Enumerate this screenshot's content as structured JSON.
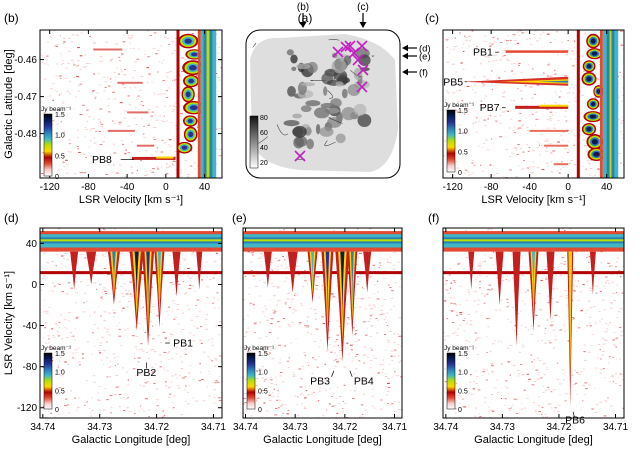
{
  "figure": {
    "colorbar_unit": "Jy beam⁻¹",
    "colorbar_ticks": [
      "1.5",
      "1.0",
      "0.5",
      "0"
    ],
    "colormap": [
      "#ffffff",
      "#f7cccc",
      "#e34a33",
      "#b30000",
      "#ffd700",
      "#b8e000",
      "#41b6c4",
      "#2c7fb8",
      "#253494",
      "#081d58",
      "#000000"
    ]
  },
  "chart_data": [
    {
      "id": "b",
      "label": "(b)",
      "type": "heatmap",
      "xlabel": "LSR Velocity [km s⁻¹]",
      "ylabel": "Galactic Latitude [deg]",
      "xlim": [
        -130,
        58
      ],
      "ylim": [
        -0.492,
        -0.452
      ],
      "xticks": [
        -120,
        -80,
        -40,
        0,
        40
      ],
      "xtick_labels": [
        "-120",
        "-80",
        "-40",
        "0",
        "40"
      ],
      "yticks": [
        -0.46,
        -0.47,
        -0.48
      ],
      "ytick_labels": [
        "-0.46",
        "-0.47",
        "-0.48"
      ],
      "annotations": [
        {
          "text": "PB8",
          "x": -33,
          "y": -0.487
        }
      ]
    },
    {
      "id": "a",
      "label": "(a)",
      "type": "image",
      "colorbar_ticks": [
        "80",
        "60",
        "40",
        "20"
      ],
      "arrows_top": [
        "(b)",
        "(c)"
      ],
      "arrows_right": [
        "(d)",
        "(e)",
        "(f)"
      ]
    },
    {
      "id": "c",
      "label": "(c)",
      "type": "heatmap",
      "xlabel": "LSR Velocity [km s⁻¹]",
      "ylabel": "",
      "xlim": [
        -130,
        58
      ],
      "ylim": [
        -0.492,
        -0.452
      ],
      "xticks": [
        -120,
        -80,
        -40,
        0,
        40
      ],
      "xtick_labels": [
        "-120",
        "-80",
        "-40",
        "0",
        "40"
      ],
      "annotations": [
        {
          "text": "PB1",
          "x": -72,
          "y": -0.458
        },
        {
          "text": "PB5",
          "x": -105,
          "y": -0.466
        },
        {
          "text": "PB7",
          "x": -65,
          "y": -0.473
        }
      ]
    },
    {
      "id": "d",
      "label": "(d)",
      "type": "heatmap",
      "xlabel": "Galactic Longitude [deg]",
      "ylabel": "LSR Velocity [km s⁻¹]",
      "xlim": [
        34.7405,
        34.7085
      ],
      "ylim": [
        -130,
        55
      ],
      "xticks": [
        34.74,
        34.73,
        34.72,
        34.71
      ],
      "xtick_labels": [
        "34.74",
        "34.73",
        "34.72",
        "34.71"
      ],
      "yticks": [
        40,
        0,
        -40,
        -80,
        -120
      ],
      "ytick_labels": [
        "40",
        "0",
        "-40",
        "-80",
        "-120"
      ],
      "annotations": [
        {
          "text": "PB1",
          "x": 34.7185,
          "y": -57
        },
        {
          "text": "PB2",
          "x": 34.7218,
          "y": -76
        }
      ]
    },
    {
      "id": "e",
      "label": "(e)",
      "type": "heatmap",
      "xlabel": "Galactic Longitude [deg]",
      "ylabel": "",
      "xlim": [
        34.7405,
        34.7085
      ],
      "ylim": [
        -130,
        55
      ],
      "xticks": [
        34.74,
        34.73,
        34.72,
        34.71
      ],
      "xtick_labels": [
        "34.74",
        "34.73",
        "34.72",
        "34.71"
      ],
      "annotations": [
        {
          "text": "PB3",
          "x": 34.7222,
          "y": -84
        },
        {
          "text": "PB4",
          "x": 34.719,
          "y": -84
        }
      ]
    },
    {
      "id": "f",
      "label": "(f)",
      "type": "heatmap",
      "xlabel": "Galactic Longitude [deg]",
      "ylabel": "",
      "xlim": [
        34.7405,
        34.7085
      ],
      "ylim": [
        -130,
        55
      ],
      "xticks": [
        34.74,
        34.73,
        34.72,
        34.71
      ],
      "xtick_labels": [
        "34.74",
        "34.73",
        "34.72",
        "34.71"
      ],
      "annotations": [
        {
          "text": "PB6",
          "x": 34.7175,
          "y": -124
        }
      ]
    }
  ]
}
